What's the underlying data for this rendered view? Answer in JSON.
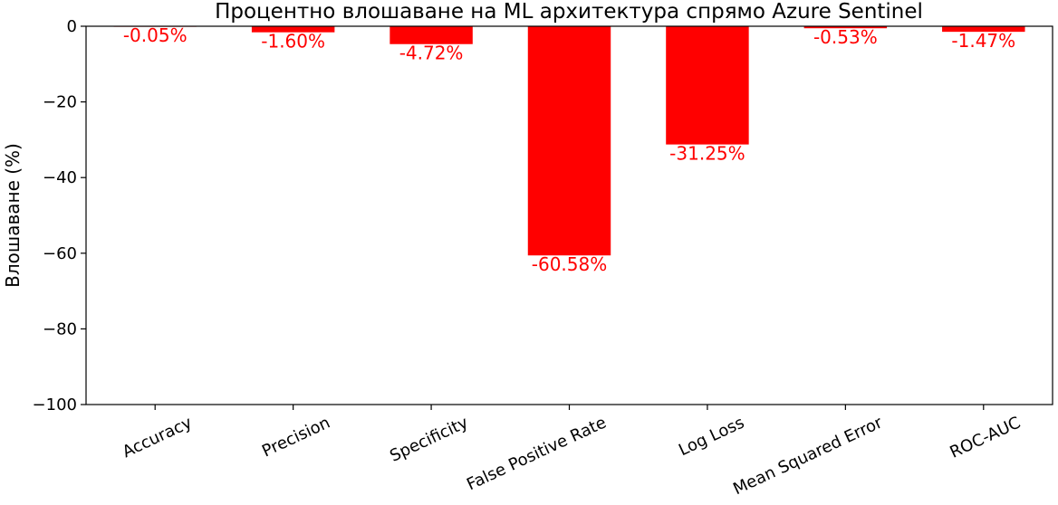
{
  "chart_data": {
    "type": "bar",
    "title": "Процентно влошаване на ML архитектура спрямо Azure Sentinel",
    "xlabel": "",
    "ylabel": "Влошаване (%)",
    "categories": [
      "Accuracy",
      "Precision",
      "Specificity",
      "False Positive Rate",
      "Log Loss",
      "Mean Squared Error",
      "ROC-AUC"
    ],
    "values": [
      -0.05,
      -1.6,
      -4.72,
      -60.58,
      -31.25,
      -0.53,
      -1.47
    ],
    "data_labels": [
      "-0.05%",
      "-1.60%",
      "-4.72%",
      "-60.58%",
      "-31.25%",
      "-0.53%",
      "-1.47%"
    ],
    "ylim": [
      -100,
      0
    ],
    "yticks": [
      0,
      -20,
      -40,
      -60,
      -80,
      -100
    ],
    "ytick_labels": [
      "0",
      "−20",
      "−40",
      "−60",
      "−80",
      "−100"
    ],
    "bar_color": "#ff0000",
    "label_color": "#ff0000",
    "grid": false,
    "legend": false
  }
}
